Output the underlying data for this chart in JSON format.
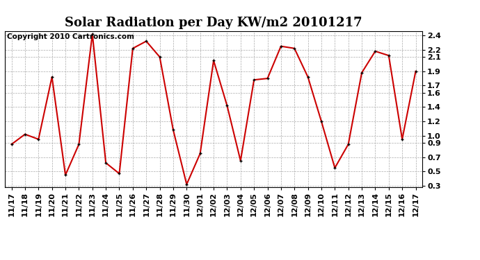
{
  "title": "Solar Radiation per Day KW/m2 20101217",
  "copyright_text": "Copyright 2010 Cartronics.com",
  "dates": [
    "11/17",
    "11/18",
    "11/19",
    "11/20",
    "11/21",
    "11/22",
    "11/23",
    "11/24",
    "11/25",
    "11/26",
    "11/27",
    "11/28",
    "11/29",
    "11/30",
    "12/01",
    "12/02",
    "12/03",
    "12/04",
    "12/05",
    "12/06",
    "12/07",
    "12/08",
    "12/09",
    "12/10",
    "12/11",
    "12/12",
    "12/13",
    "12/14",
    "12/15",
    "12/16",
    "12/17"
  ],
  "values": [
    0.88,
    1.02,
    0.95,
    1.82,
    0.45,
    0.88,
    2.42,
    0.62,
    0.47,
    2.22,
    2.32,
    2.1,
    1.08,
    0.32,
    0.75,
    2.05,
    1.42,
    0.65,
    1.78,
    1.8,
    2.25,
    2.22,
    1.82,
    1.2,
    0.55,
    0.88,
    1.88,
    2.18,
    2.12,
    0.95,
    1.9
  ],
  "line_color": "#cc0000",
  "marker_color": "#000000",
  "background_color": "#ffffff",
  "grid_color": "#aaaaaa",
  "ylim": [
    0.28,
    2.46
  ],
  "yticks": [
    0.3,
    0.5,
    0.7,
    0.9,
    1.0,
    1.2,
    1.4,
    1.6,
    1.7,
    1.9,
    2.1,
    2.2,
    2.4
  ],
  "ytick_labels": [
    "0.3",
    "0.5",
    "0.7",
    "0.9",
    "1.0",
    "1.2",
    "1.4",
    "1.6",
    "1.7",
    "1.9",
    "2.1",
    "2.2",
    "2.4"
  ],
  "title_fontsize": 13,
  "tick_fontsize": 8,
  "copyright_fontsize": 7.5,
  "marker_size": 3
}
